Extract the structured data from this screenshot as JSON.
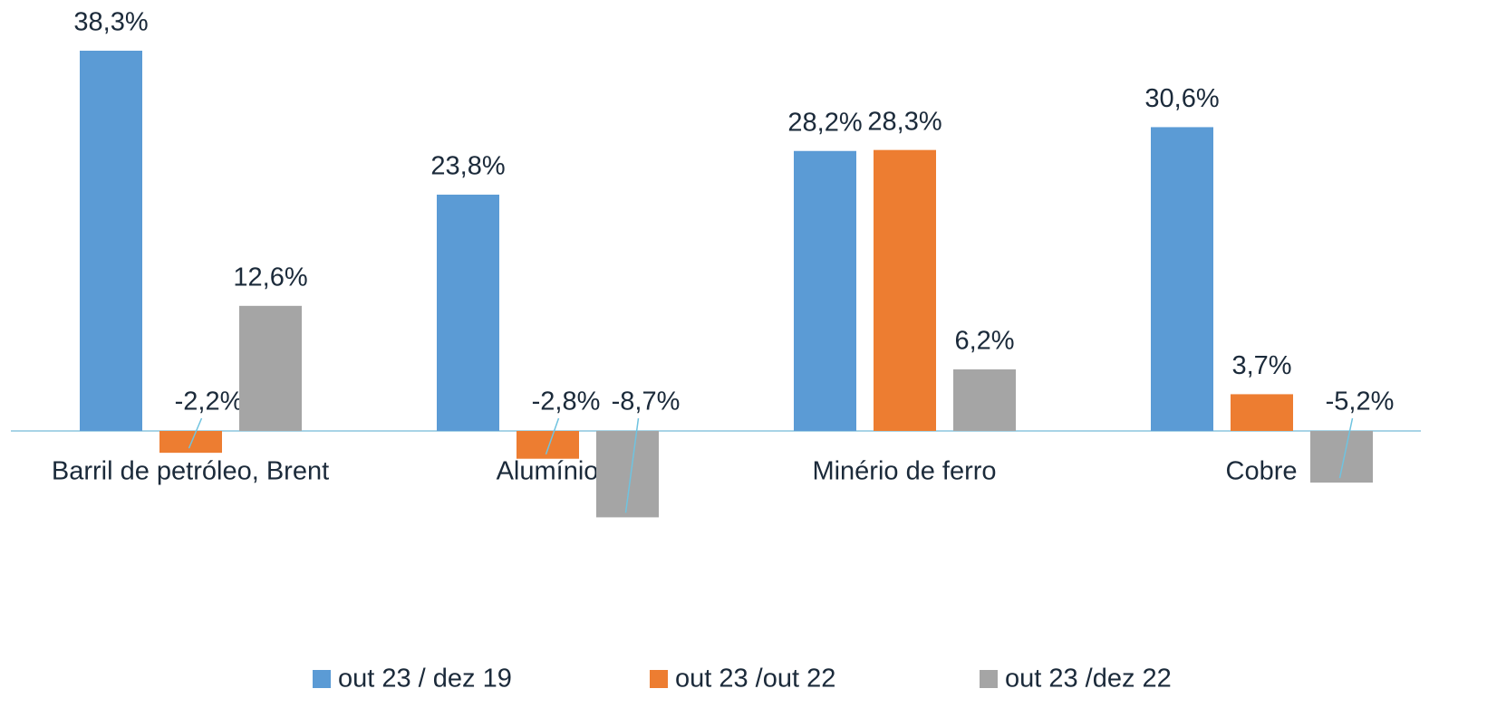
{
  "chart_data": {
    "type": "bar",
    "categories": [
      "Barril de petróleo, Brent",
      "Alumínio",
      "Minério de ferro",
      "Cobre"
    ],
    "series": [
      {
        "name": "out 23 / dez 19",
        "color": "#5b9bd5",
        "values": [
          38.3,
          23.8,
          28.2,
          30.6
        ],
        "value_labels": [
          "38,3%",
          "23,8%",
          "28,2%",
          "30,6%"
        ]
      },
      {
        "name": "out 23 /out 22",
        "color": "#ed7d31",
        "values": [
          -2.2,
          -2.8,
          28.3,
          3.7
        ],
        "value_labels": [
          "-2,2%",
          "-2,8%",
          "28,3%",
          "3,7%"
        ]
      },
      {
        "name": "out 23 /dez 22",
        "color": "#a5a5a5",
        "values": [
          12.6,
          -8.7,
          6.2,
          -5.2
        ],
        "value_labels": [
          "12,6%",
          "-8,7%",
          "6,2%",
          "-5,2%"
        ]
      }
    ],
    "legend": "bottom"
  }
}
